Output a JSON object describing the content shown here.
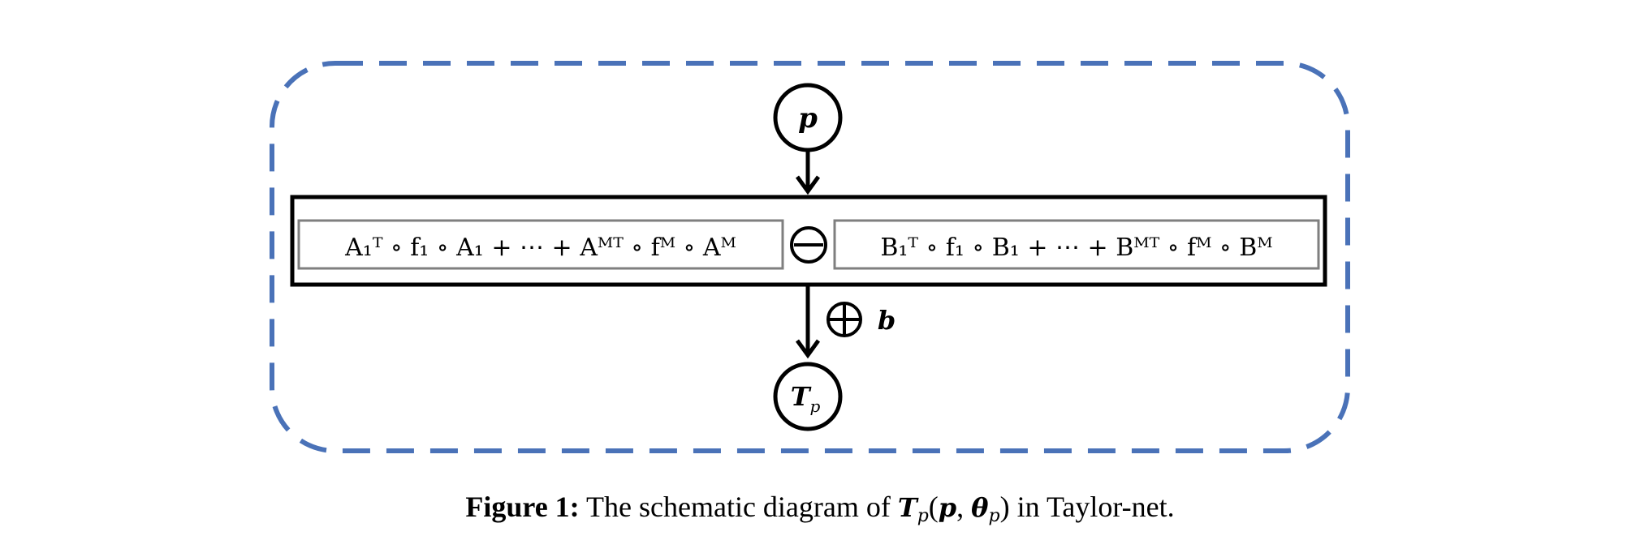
{
  "nodes": {
    "input": "p",
    "output_main": "T",
    "output_sub": "p"
  },
  "expression": {
    "left": "A₁ᵀ ∘ f₁ ∘ A₁ + ⋯ + Aᴹᵀ ∘ fᴹ ∘ Aᴹ",
    "right": "B₁ᵀ ∘ f₁ ∘ B₁ + ⋯ + Bᴹᵀ ∘ fᴹ ∘ Bᴹ",
    "operator": "minus"
  },
  "bias": {
    "label": "b",
    "operator": "plus"
  },
  "caption": {
    "label": "Figure 1:",
    "text_before": "The schematic diagram of",
    "math_main": "T",
    "math_sub": "p",
    "math_args_open": "(",
    "math_arg1": "p",
    "math_sep": ",",
    "math_arg2": "θ",
    "math_arg2_sub": "p",
    "math_args_close": ")",
    "text_after": "in Taylor-net."
  },
  "colors": {
    "container_border": "#4a72b8",
    "box_border": "#000000",
    "term_border": "#7f7f7f"
  }
}
